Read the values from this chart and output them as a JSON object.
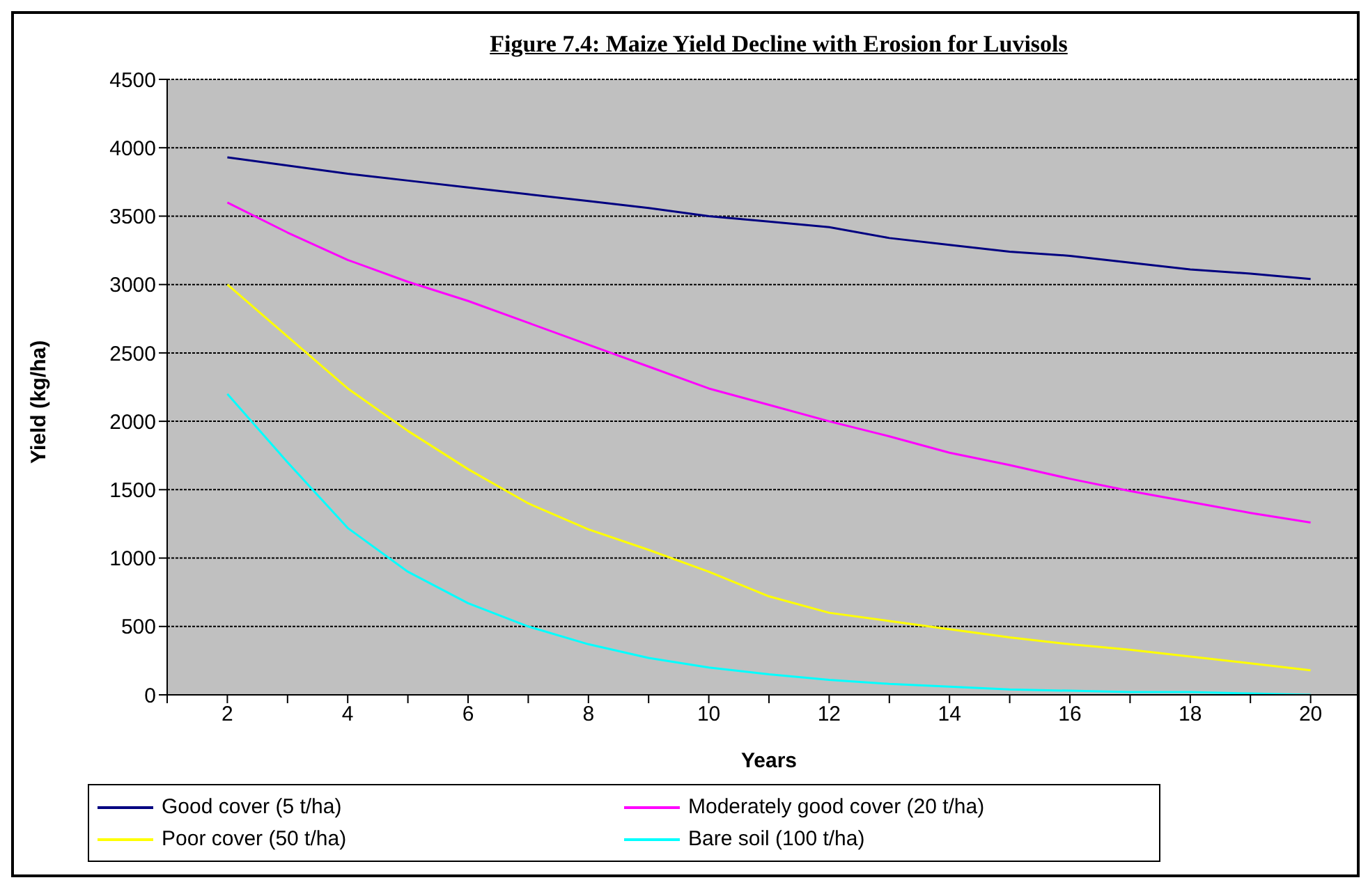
{
  "chart_data": {
    "type": "line",
    "title": "Figure 7.4: Maize Yield Decline with Erosion for Luvisols",
    "xlabel": "Years",
    "ylabel": "Yield (kg/ha)",
    "x": [
      2,
      3,
      4,
      5,
      6,
      7,
      8,
      9,
      10,
      11,
      12,
      13,
      14,
      15,
      16,
      17,
      18,
      19,
      20
    ],
    "series": [
      {
        "name": "Good cover (5 t/ha)",
        "color": "#000080",
        "values": [
          3930,
          3870,
          3810,
          3760,
          3710,
          3660,
          3610,
          3560,
          3500,
          3460,
          3420,
          3340,
          3290,
          3240,
          3210,
          3160,
          3110,
          3080,
          3040
        ]
      },
      {
        "name": "Moderately good cover (20 t/ha)",
        "color": "#ff00ff",
        "values": [
          3600,
          3380,
          3180,
          3020,
          2880,
          2720,
          2560,
          2400,
          2240,
          2120,
          2000,
          1890,
          1770,
          1680,
          1580,
          1490,
          1410,
          1330,
          1260
        ]
      },
      {
        "name": "Poor cover (50 t/ha)",
        "color": "#ffff00",
        "values": [
          3000,
          2620,
          2240,
          1930,
          1650,
          1400,
          1210,
          1060,
          900,
          720,
          600,
          540,
          480,
          420,
          370,
          330,
          280,
          230,
          180
        ]
      },
      {
        "name": "Bare soil (100 t/ha)",
        "color": "#00ffff",
        "values": [
          2200,
          1700,
          1220,
          900,
          670,
          500,
          370,
          270,
          200,
          150,
          110,
          80,
          60,
          40,
          30,
          20,
          20,
          10,
          0
        ]
      }
    ],
    "xlim": [
      1,
      21
    ],
    "xticks": [
      {
        "value": 1,
        "label": null
      },
      2,
      {
        "value": 3,
        "label": null
      },
      4,
      {
        "value": 5,
        "label": null
      },
      6,
      {
        "value": 7,
        "label": null
      },
      8,
      {
        "value": 9,
        "label": null
      },
      10,
      {
        "value": 11,
        "label": null
      },
      12,
      {
        "value": 13,
        "label": null
      },
      14,
      {
        "value": 15,
        "label": null
      },
      16,
      {
        "value": 17,
        "label": null
      },
      18,
      {
        "value": 19,
        "label": null
      },
      20,
      {
        "value": 21,
        "label": null
      }
    ],
    "ylim": [
      0,
      4500
    ],
    "yticks": [
      0,
      500,
      1000,
      1500,
      2000,
      2500,
      3000,
      3500,
      4000,
      4500
    ],
    "grid": "y",
    "legend": "bottom",
    "marker": "none",
    "line_style": "solid"
  }
}
